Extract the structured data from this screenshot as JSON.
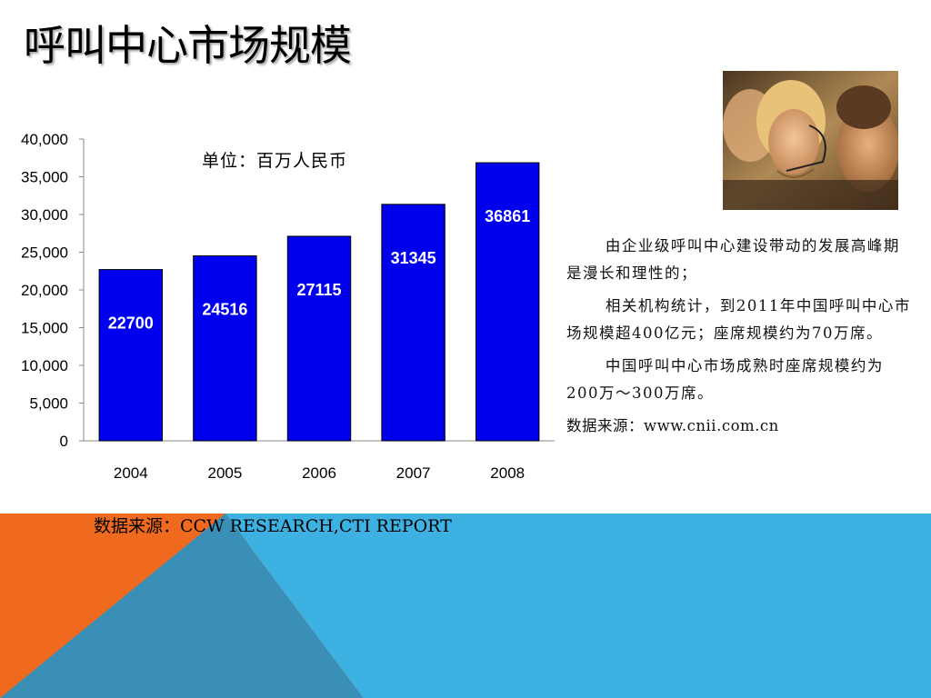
{
  "slide": {
    "title": "呼叫中心市场规模",
    "unit_label": "单位：百万人民币",
    "source_label": "数据来源：CCW RESEARCH,CTI REPORT",
    "paragraphs": [
      "由企业级呼叫中心建设带动的发展高峰期是漫长和理性的；",
      "相关机构统计，到2011年中国呼叫中心市场规模超400亿元；座席规模约为70万席。",
      "中国呼叫中心市场成熟时座席规模约为200万～300万席。"
    ],
    "text_source": "数据来源：www.cnii.com.cn"
  },
  "colors": {
    "bar": "#0000ee",
    "accent_orange": "#ef6a1f",
    "accent_blue": "#3db1e2",
    "accent_dark_blue": "#3c90b4"
  },
  "chart_data": {
    "type": "bar",
    "categories": [
      "2004",
      "2005",
      "2006",
      "2007",
      "2008"
    ],
    "values": [
      22700,
      24516,
      27115,
      31345,
      36861
    ],
    "data_labels": [
      "22700",
      "24516",
      "27115",
      "31345",
      "36861"
    ],
    "y_ticks": [
      "0",
      "5,000",
      "10,000",
      "15,000",
      "20,000",
      "25,000",
      "30,000",
      "35,000",
      "40,000"
    ],
    "title": "",
    "xlabel": "",
    "ylabel": "",
    "ylim": [
      0,
      40000
    ],
    "grid": false,
    "legend": "none"
  }
}
